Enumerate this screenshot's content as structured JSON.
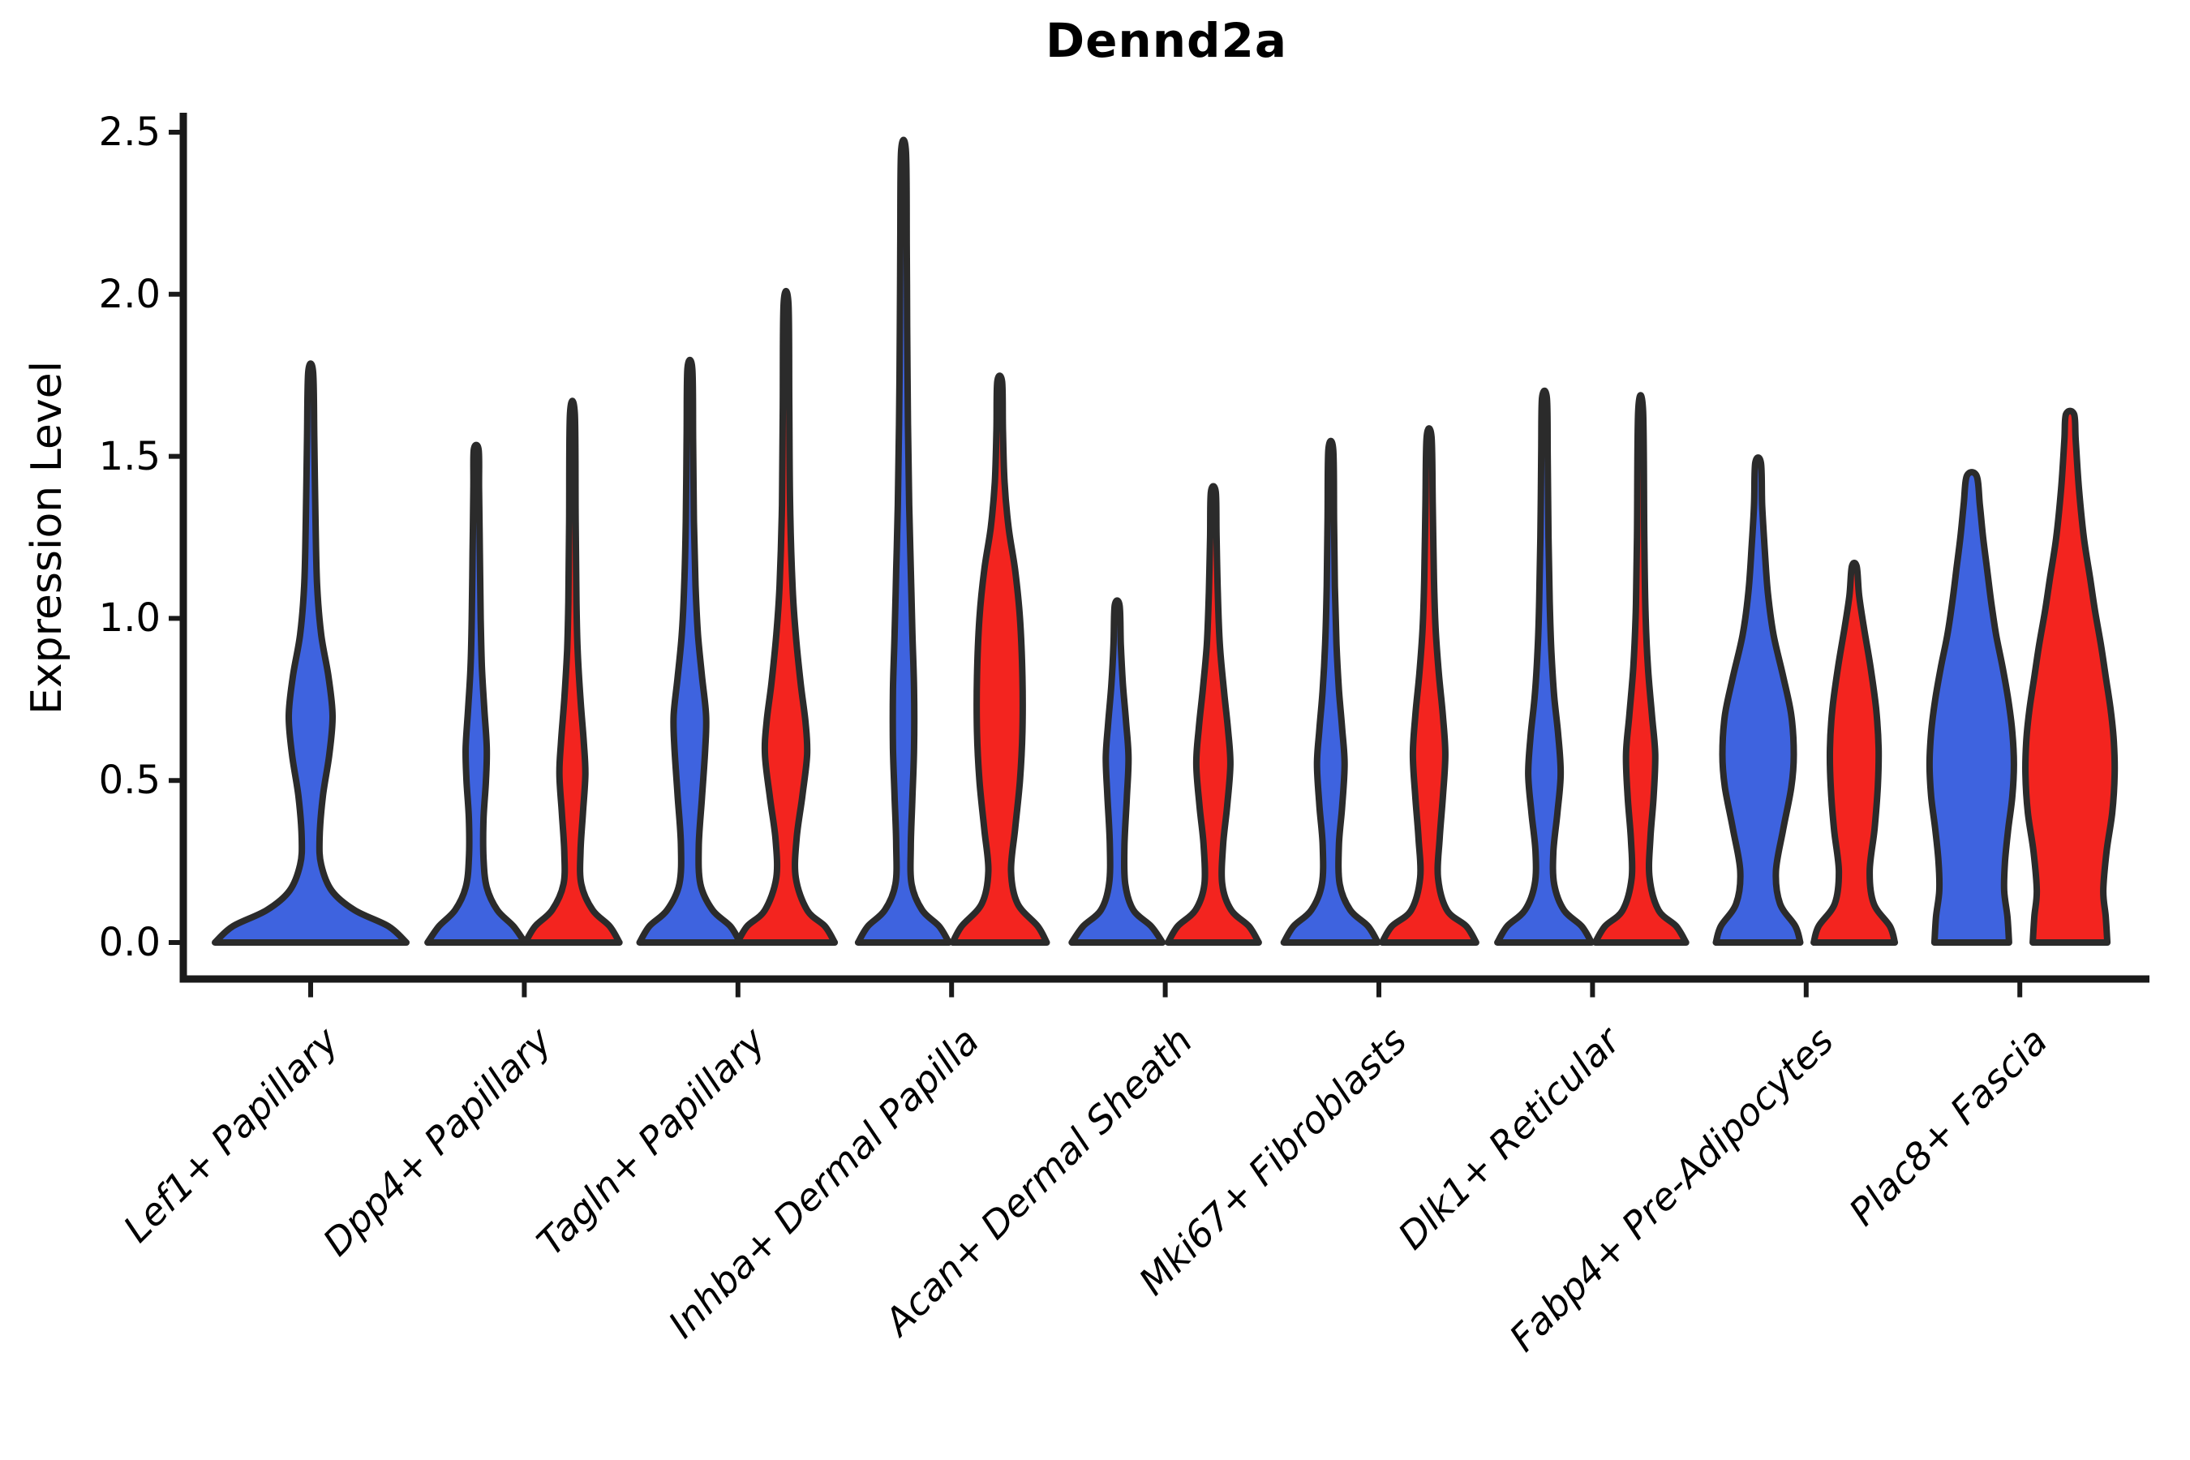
{
  "title": "Dennd2a",
  "y_axis": {
    "label": "Expression Level",
    "tick_labels": [
      "0.0",
      "0.5",
      "1.0",
      "1.5",
      "2.0",
      "2.5"
    ],
    "tick_values": [
      0.0,
      0.5,
      1.0,
      1.5,
      2.0,
      2.5
    ]
  },
  "x_axis": {
    "categories": [
      "Lef1+ Papillary",
      "Dpp4+ Papillary",
      "Tagln+ Papillary",
      "Inhba+ Dermal Papilla",
      "Acan+ Dermal Sheath",
      "Mki67+ Fibroblasts",
      "Dlk1+ Reticular",
      "Fabp4+ Pre-Adipocytes",
      "Plac8+ Fascia"
    ]
  },
  "colors": {
    "split_blue": "#3E63DF",
    "split_red": "#F3241F",
    "edge": "#2B2B2B",
    "axis": "#1A1A1A",
    "text": "#000000",
    "background": "#FFFFFF"
  },
  "chart_data": {
    "type": "violin",
    "title": "Dennd2a",
    "ylabel": "Expression Level",
    "xlabel": "",
    "ylim": [
      -0.11,
      2.56
    ],
    "grid": false,
    "legend": "none",
    "categories": [
      "Lef1+ Papillary",
      "Dpp4+ Papillary",
      "Tagln+ Papillary",
      "Inhba+ Dermal Papilla",
      "Acan+ Dermal Sheath",
      "Mki67+ Fibroblasts",
      "Dlk1+ Reticular",
      "Fabp4+ Pre-Adipocytes",
      "Plac8+ Fascia"
    ],
    "splits": [
      "blue",
      "red"
    ],
    "violins": [
      {
        "category": "Lef1+ Papillary",
        "cat_index": 0,
        "split": "blue",
        "offset": 0.0,
        "max_expression": 1.76,
        "profile": [
          [
            0,
            118
          ],
          [
            0.05,
            96
          ],
          [
            0.1,
            54
          ],
          [
            0.16,
            26
          ],
          [
            0.24,
            13
          ],
          [
            0.32,
            11
          ],
          [
            0.45,
            15
          ],
          [
            0.58,
            23
          ],
          [
            0.7,
            27
          ],
          [
            0.82,
            22
          ],
          [
            0.95,
            13
          ],
          [
            1.1,
            8
          ],
          [
            1.3,
            6
          ],
          [
            1.55,
            4.5
          ],
          [
            1.76,
            3
          ]
        ]
      },
      {
        "category": "Dpp4+ Papillary",
        "cat_index": 1,
        "split": "blue",
        "offset": -0.225,
        "max_expression": 1.52,
        "profile": [
          [
            0,
            60
          ],
          [
            0.05,
            46
          ],
          [
            0.1,
            26
          ],
          [
            0.17,
            13
          ],
          [
            0.26,
            9
          ],
          [
            0.38,
            9
          ],
          [
            0.5,
            12
          ],
          [
            0.6,
            13
          ],
          [
            0.72,
            10
          ],
          [
            0.85,
            7
          ],
          [
            1.0,
            5.5
          ],
          [
            1.2,
            4.5
          ],
          [
            1.4,
            3.5
          ],
          [
            1.52,
            3
          ]
        ]
      },
      {
        "category": "Dpp4+ Papillary",
        "cat_index": 1,
        "split": "red",
        "offset": 0.225,
        "max_expression": 1.63,
        "profile": [
          [
            0,
            58
          ],
          [
            0.05,
            46
          ],
          [
            0.1,
            25
          ],
          [
            0.18,
            11
          ],
          [
            0.28,
            10
          ],
          [
            0.4,
            13
          ],
          [
            0.52,
            16
          ],
          [
            0.62,
            14
          ],
          [
            0.75,
            10
          ],
          [
            0.9,
            6.5
          ],
          [
            1.05,
            5
          ],
          [
            1.3,
            4
          ],
          [
            1.63,
            3
          ]
        ]
      },
      {
        "category": "Tagln+ Papillary",
        "cat_index": 2,
        "split": "blue",
        "offset": -0.225,
        "max_expression": 1.77,
        "profile": [
          [
            0,
            62
          ],
          [
            0.05,
            50
          ],
          [
            0.1,
            28
          ],
          [
            0.18,
            13
          ],
          [
            0.3,
            11
          ],
          [
            0.45,
            15
          ],
          [
            0.6,
            19
          ],
          [
            0.7,
            20
          ],
          [
            0.82,
            15
          ],
          [
            0.95,
            10
          ],
          [
            1.1,
            7
          ],
          [
            1.3,
            5
          ],
          [
            1.55,
            4
          ],
          [
            1.77,
            3
          ]
        ]
      },
      {
        "category": "Tagln+ Papillary",
        "cat_index": 2,
        "split": "red",
        "offset": 0.225,
        "max_expression": 1.97,
        "profile": [
          [
            0,
            60
          ],
          [
            0.05,
            48
          ],
          [
            0.1,
            26
          ],
          [
            0.2,
            12
          ],
          [
            0.32,
            13
          ],
          [
            0.45,
            20
          ],
          [
            0.58,
            26
          ],
          [
            0.68,
            24
          ],
          [
            0.8,
            18
          ],
          [
            0.95,
            12
          ],
          [
            1.1,
            8
          ],
          [
            1.35,
            5
          ],
          [
            1.65,
            4
          ],
          [
            1.97,
            3
          ]
        ]
      },
      {
        "category": "Inhba+ Dermal Papilla",
        "cat_index": 3,
        "split": "blue",
        "offset": -0.225,
        "max_expression": 2.44,
        "profile": [
          [
            0,
            56
          ],
          [
            0.05,
            44
          ],
          [
            0.1,
            23
          ],
          [
            0.18,
            10
          ],
          [
            0.3,
            9
          ],
          [
            0.45,
            11
          ],
          [
            0.6,
            13
          ],
          [
            0.78,
            13
          ],
          [
            0.95,
            11
          ],
          [
            1.15,
            9
          ],
          [
            1.35,
            7
          ],
          [
            1.6,
            5.5
          ],
          [
            1.9,
            4.5
          ],
          [
            2.15,
            4
          ],
          [
            2.44,
            3
          ]
        ]
      },
      {
        "category": "Inhba+ Dermal Papilla",
        "cat_index": 3,
        "split": "red",
        "offset": 0.225,
        "max_expression": 1.73,
        "profile": [
          [
            0,
            58
          ],
          [
            0.05,
            47
          ],
          [
            0.12,
            22
          ],
          [
            0.22,
            14
          ],
          [
            0.35,
            19
          ],
          [
            0.5,
            25
          ],
          [
            0.65,
            28
          ],
          [
            0.82,
            28
          ],
          [
            1.0,
            25
          ],
          [
            1.15,
            19
          ],
          [
            1.28,
            11
          ],
          [
            1.42,
            6
          ],
          [
            1.58,
            4
          ],
          [
            1.73,
            3
          ]
        ]
      },
      {
        "category": "Acan+ Dermal Sheath",
        "cat_index": 4,
        "split": "blue",
        "offset": -0.225,
        "max_expression": 1.04,
        "profile": [
          [
            0,
            56
          ],
          [
            0.05,
            42
          ],
          [
            0.1,
            20
          ],
          [
            0.18,
            10
          ],
          [
            0.3,
            9
          ],
          [
            0.45,
            12
          ],
          [
            0.57,
            14
          ],
          [
            0.68,
            11
          ],
          [
            0.8,
            7
          ],
          [
            0.92,
            4.5
          ],
          [
            1.04,
            3
          ]
        ]
      },
      {
        "category": "Acan+ Dermal Sheath",
        "cat_index": 4,
        "split": "red",
        "offset": 0.225,
        "max_expression": 1.39,
        "profile": [
          [
            0,
            56
          ],
          [
            0.05,
            44
          ],
          [
            0.1,
            22
          ],
          [
            0.18,
            11
          ],
          [
            0.3,
            12
          ],
          [
            0.42,
            17
          ],
          [
            0.55,
            21
          ],
          [
            0.66,
            18
          ],
          [
            0.78,
            13
          ],
          [
            0.92,
            8
          ],
          [
            1.08,
            5.5
          ],
          [
            1.25,
            4
          ],
          [
            1.39,
            3
          ]
        ]
      },
      {
        "category": "Mki67+ Fibroblasts",
        "cat_index": 5,
        "split": "blue",
        "offset": -0.225,
        "max_expression": 1.52,
        "profile": [
          [
            0,
            58
          ],
          [
            0.05,
            46
          ],
          [
            0.1,
            24
          ],
          [
            0.18,
            11
          ],
          [
            0.3,
            10
          ],
          [
            0.42,
            14
          ],
          [
            0.55,
            17
          ],
          [
            0.66,
            14
          ],
          [
            0.78,
            10
          ],
          [
            0.92,
            7
          ],
          [
            1.1,
            5
          ],
          [
            1.3,
            4
          ],
          [
            1.52,
            3
          ]
        ]
      },
      {
        "category": "Mki67+ Fibroblasts",
        "cat_index": 5,
        "split": "red",
        "offset": 0.235,
        "max_expression": 1.56,
        "profile": [
          [
            0,
            58
          ],
          [
            0.05,
            46
          ],
          [
            0.1,
            22
          ],
          [
            0.2,
            11
          ],
          [
            0.32,
            13
          ],
          [
            0.45,
            17
          ],
          [
            0.58,
            20
          ],
          [
            0.7,
            17
          ],
          [
            0.83,
            12
          ],
          [
            0.97,
            8
          ],
          [
            1.12,
            6
          ],
          [
            1.35,
            4.5
          ],
          [
            1.56,
            3
          ]
        ]
      },
      {
        "category": "Dlk1+ Reticular",
        "cat_index": 6,
        "split": "blue",
        "offset": -0.225,
        "max_expression": 1.68,
        "profile": [
          [
            0,
            58
          ],
          [
            0.05,
            46
          ],
          [
            0.1,
            24
          ],
          [
            0.18,
            12
          ],
          [
            0.28,
            11
          ],
          [
            0.4,
            16
          ],
          [
            0.52,
            20
          ],
          [
            0.64,
            17
          ],
          [
            0.76,
            12
          ],
          [
            0.9,
            8.5
          ],
          [
            1.05,
            6.5
          ],
          [
            1.25,
            5
          ],
          [
            1.5,
            4
          ],
          [
            1.68,
            3
          ]
        ]
      },
      {
        "category": "Dlk1+ Reticular",
        "cat_index": 6,
        "split": "red",
        "offset": 0.225,
        "max_expression": 1.64,
        "profile": [
          [
            0,
            56
          ],
          [
            0.05,
            44
          ],
          [
            0.1,
            22
          ],
          [
            0.2,
            11
          ],
          [
            0.32,
            12
          ],
          [
            0.45,
            16
          ],
          [
            0.58,
            18
          ],
          [
            0.7,
            14
          ],
          [
            0.85,
            9
          ],
          [
            1.02,
            6
          ],
          [
            1.25,
            4.5
          ],
          [
            1.64,
            3
          ]
        ]
      },
      {
        "category": "Fabp4+ Pre-Adipocytes",
        "cat_index": 7,
        "split": "blue",
        "offset": -0.225,
        "max_expression": 1.48,
        "profile": [
          [
            0,
            52
          ],
          [
            0.05,
            46
          ],
          [
            0.12,
            27
          ],
          [
            0.22,
            22
          ],
          [
            0.35,
            31
          ],
          [
            0.48,
            41
          ],
          [
            0.58,
            44
          ],
          [
            0.7,
            41
          ],
          [
            0.82,
            31
          ],
          [
            0.95,
            19
          ],
          [
            1.08,
            12
          ],
          [
            1.22,
            8
          ],
          [
            1.35,
            5
          ],
          [
            1.48,
            3.5
          ]
        ]
      },
      {
        "category": "Fabp4+ Pre-Adipocytes",
        "cat_index": 7,
        "split": "red",
        "offset": 0.225,
        "max_expression": 1.16,
        "profile": [
          [
            0,
            50
          ],
          [
            0.05,
            44
          ],
          [
            0.12,
            24
          ],
          [
            0.22,
            19
          ],
          [
            0.35,
            25
          ],
          [
            0.48,
            29
          ],
          [
            0.6,
            30
          ],
          [
            0.72,
            27
          ],
          [
            0.85,
            20
          ],
          [
            0.97,
            12
          ],
          [
            1.07,
            6
          ],
          [
            1.16,
            3
          ]
        ]
      },
      {
        "category": "Plac8+ Fascia",
        "cat_index": 8,
        "split": "blue",
        "offset": -0.225,
        "max_expression": 1.44,
        "profile": [
          [
            0,
            46
          ],
          [
            0.08,
            44
          ],
          [
            0.16,
            40
          ],
          [
            0.25,
            41
          ],
          [
            0.35,
            45
          ],
          [
            0.45,
            50
          ],
          [
            0.55,
            52
          ],
          [
            0.65,
            50
          ],
          [
            0.75,
            45
          ],
          [
            0.85,
            38
          ],
          [
            0.95,
            30
          ],
          [
            1.05,
            24
          ],
          [
            1.15,
            19
          ],
          [
            1.25,
            14
          ],
          [
            1.35,
            10
          ],
          [
            1.44,
            6
          ]
        ]
      },
      {
        "category": "Plac8+ Fascia",
        "cat_index": 8,
        "split": "red",
        "offset": 0.235,
        "max_expression": 1.63,
        "profile": [
          [
            0,
            46
          ],
          [
            0.08,
            44
          ],
          [
            0.16,
            41
          ],
          [
            0.28,
            45
          ],
          [
            0.4,
            52
          ],
          [
            0.52,
            55
          ],
          [
            0.62,
            54
          ],
          [
            0.72,
            50
          ],
          [
            0.82,
            44
          ],
          [
            0.92,
            38
          ],
          [
            1.02,
            31
          ],
          [
            1.12,
            25
          ],
          [
            1.25,
            17
          ],
          [
            1.4,
            11
          ],
          [
            1.55,
            7
          ],
          [
            1.63,
            5
          ]
        ]
      }
    ]
  }
}
